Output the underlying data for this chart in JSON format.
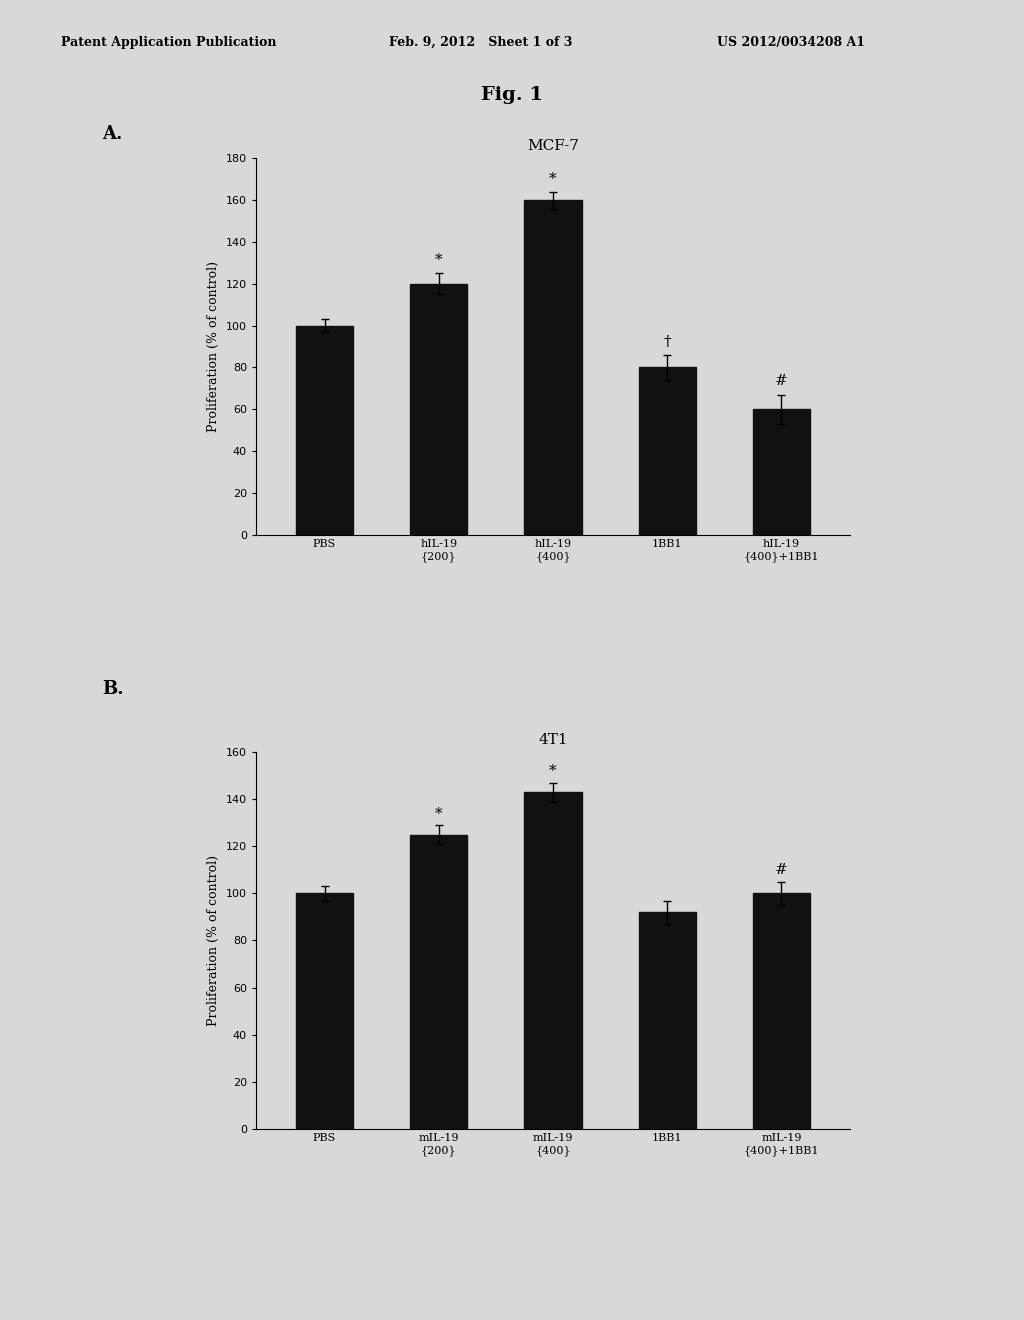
{
  "fig_title": "Fig. 1",
  "header_left": "Patent Application Publication",
  "header_center": "Feb. 9, 2012   Sheet 1 of 3",
  "header_right": "US 2012/0034208 A1",
  "panel_A": {
    "label": "A.",
    "title": "MCF-7",
    "categories": [
      "PBS",
      "hIL-19\n{200}",
      "hIL-19\n{400}",
      "1BB1",
      "hIL-19\n{400}+1BB1"
    ],
    "values": [
      100,
      120,
      160,
      80,
      60
    ],
    "errors": [
      3,
      5,
      4,
      6,
      7
    ],
    "annotations": [
      "",
      "*",
      "*",
      "†",
      "#"
    ],
    "ylabel": "Proliferation (% of control)",
    "ylim": [
      0,
      180
    ],
    "yticks": [
      0,
      20,
      40,
      60,
      80,
      100,
      120,
      140,
      160,
      180
    ],
    "bar_color": "#111111"
  },
  "panel_B": {
    "label": "B.",
    "title": "4T1",
    "categories": [
      "PBS",
      "mIL-19\n{200}",
      "mIL-19\n{400}",
      "1BB1",
      "mIL-19\n{400}+1BB1"
    ],
    "values": [
      100,
      125,
      143,
      92,
      100
    ],
    "errors": [
      3,
      4,
      4,
      5,
      5
    ],
    "annotations": [
      "",
      "*",
      "*",
      "",
      "#"
    ],
    "ylabel": "Proliferation (% of control)",
    "ylim": [
      0,
      160
    ],
    "yticks": [
      0,
      20,
      40,
      60,
      80,
      100,
      120,
      140,
      160
    ],
    "bar_color": "#111111"
  },
  "background_color": "#d8d8d8",
  "plot_bg": "#d8d8d8",
  "bar_width": 0.5,
  "font_family": "DejaVu Serif"
}
